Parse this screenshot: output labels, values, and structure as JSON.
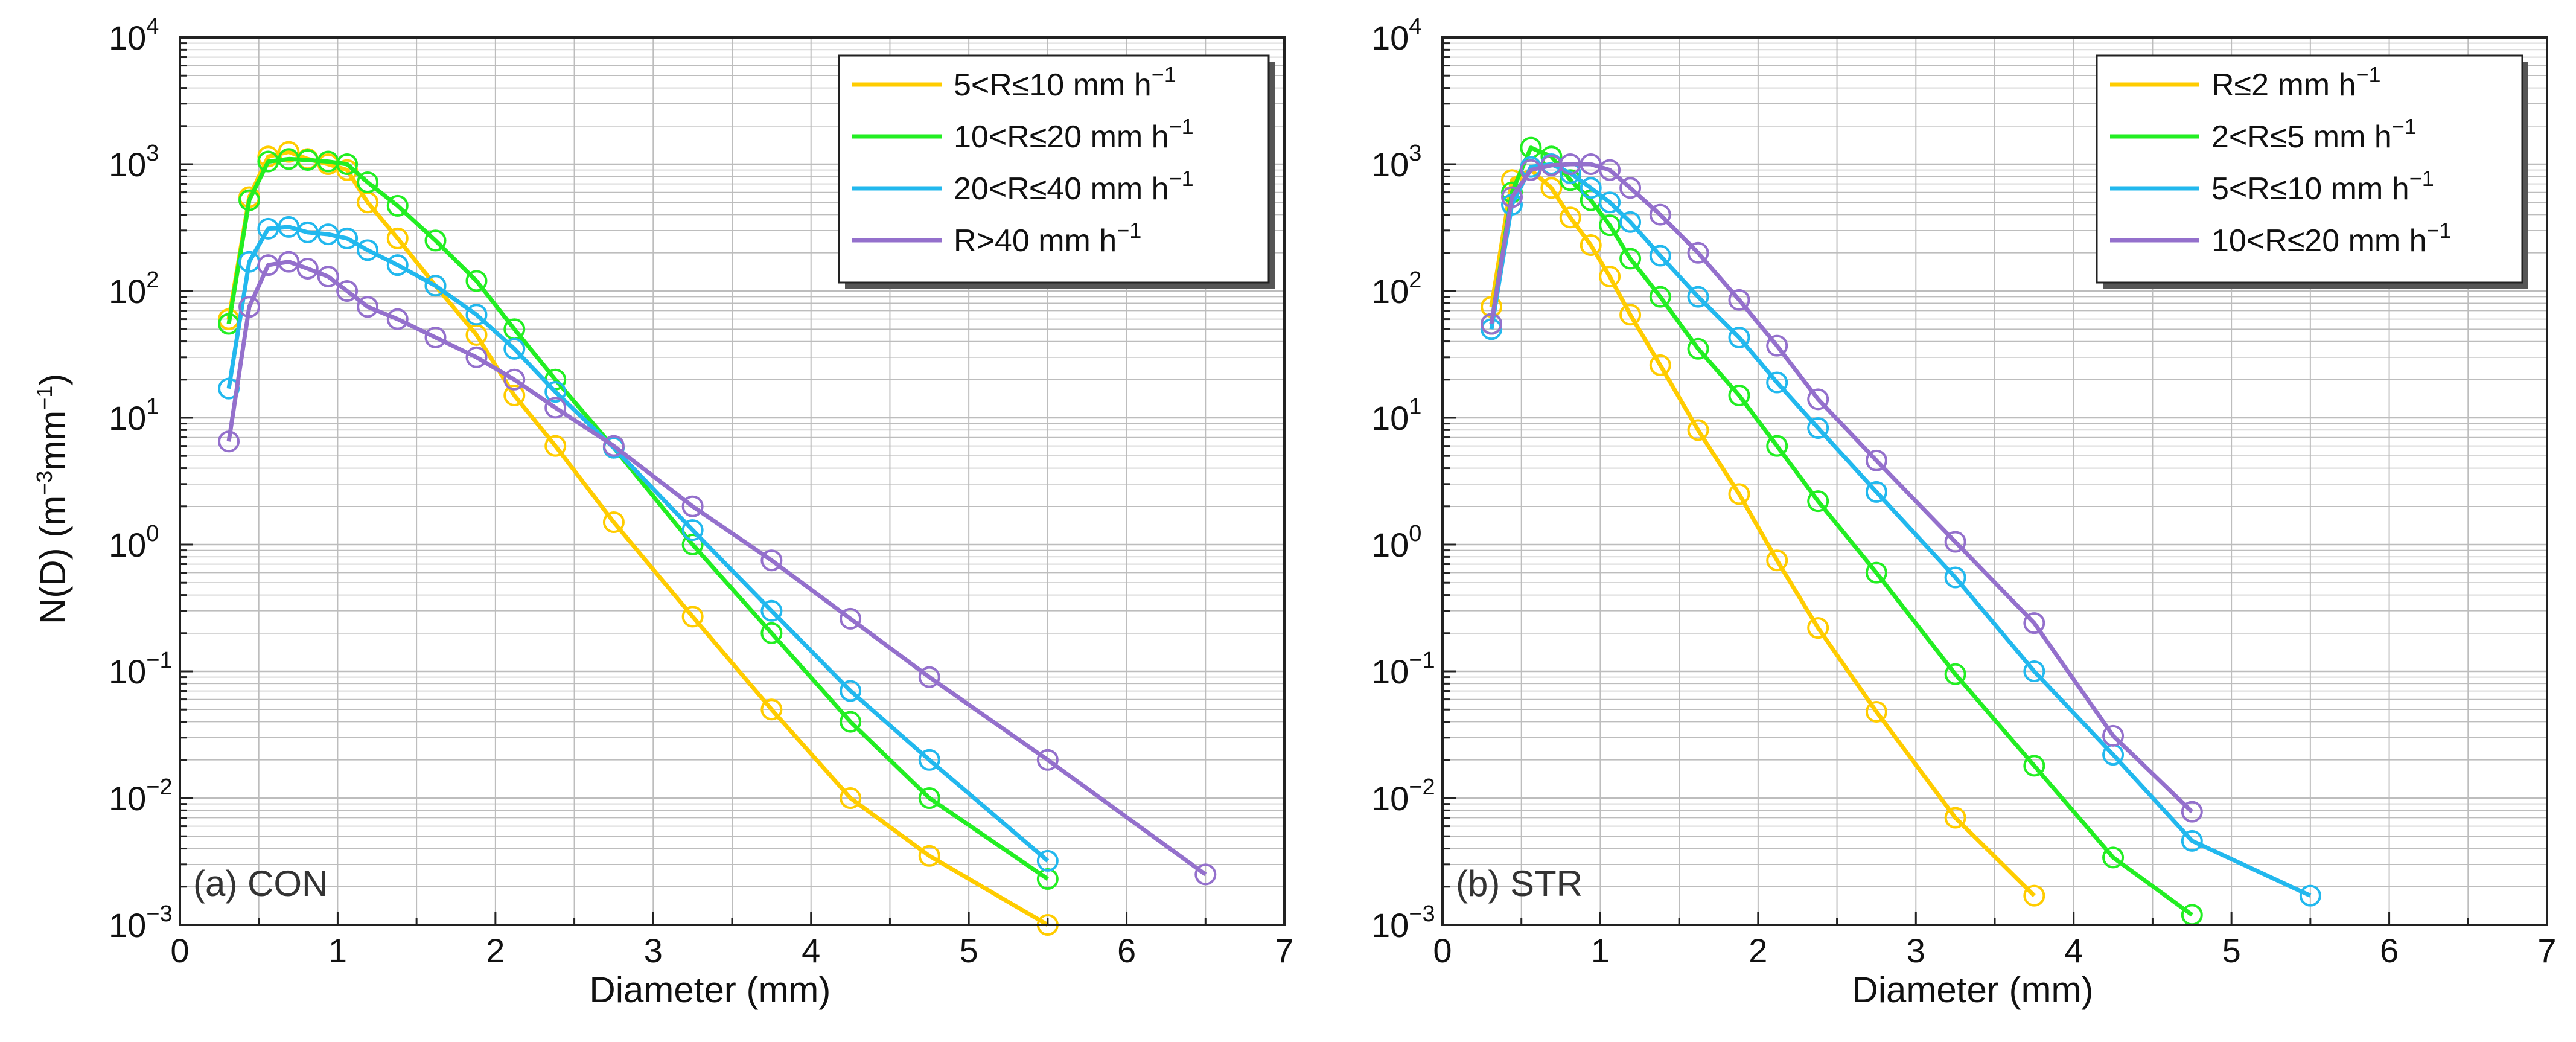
{
  "colors": {
    "yellow": "#FFCC00",
    "green": "#22EE22",
    "blue": "#22B8EE",
    "purple": "#9470CC",
    "grid": "#BDBDBD",
    "axis": "#222222"
  },
  "chart_data": [
    {
      "type": "line",
      "panel_label": "(a) CON",
      "xlabel": "Diameter (mm)",
      "ylabel": "N(D) (m",
      "ylabel_sup1": "−3",
      "ylabel_mid": "mm",
      "ylabel_sup2": "−1",
      "ylabel_end": ")",
      "yscale": "log",
      "xlim": [
        0,
        7
      ],
      "ylim": [
        0.001,
        10000
      ],
      "xticks": [
        "0",
        "1",
        "2",
        "3",
        "4",
        "5",
        "6",
        "7"
      ],
      "yticks": [
        {
          "base": "10",
          "exp": "-3"
        },
        {
          "base": "10",
          "exp": "-2"
        },
        {
          "base": "10",
          "exp": "-1"
        },
        {
          "base": "10",
          "exp": "0"
        },
        {
          "base": "10",
          "exp": "1"
        },
        {
          "base": "10",
          "exp": "2"
        },
        {
          "base": "10",
          "exp": "3"
        },
        {
          "base": "10",
          "exp": "4"
        }
      ],
      "legend_position": "top-right",
      "series": [
        {
          "name": "5<R≤10 mm h",
          "unit_sup": "−1",
          "color": "yellow",
          "x": [
            0.31,
            0.44,
            0.56,
            0.69,
            0.81,
            0.94,
            1.06,
            1.19,
            1.38,
            1.62,
            1.88,
            2.12,
            2.38,
            2.75,
            3.25,
            3.75,
            4.25,
            4.75,
            5.5
          ],
          "y": [
            60,
            550,
            1150,
            1250,
            1100,
            1000,
            900,
            500,
            260,
            110,
            45,
            15,
            6,
            1.5,
            0.27,
            0.05,
            0.01,
            0.0035,
            0.001
          ]
        },
        {
          "name": "10<R≤20 mm h",
          "unit_sup": "−1",
          "color": "green",
          "x": [
            0.31,
            0.44,
            0.56,
            0.69,
            0.81,
            0.94,
            1.06,
            1.19,
            1.38,
            1.62,
            1.88,
            2.12,
            2.38,
            2.75,
            3.25,
            3.75,
            4.25,
            4.75,
            5.5
          ],
          "y": [
            55,
            520,
            1050,
            1100,
            1080,
            1050,
            1000,
            720,
            470,
            250,
            120,
            50,
            20,
            5.8,
            1.0,
            0.2,
            0.04,
            0.01,
            0.0023
          ]
        },
        {
          "name": "20<R≤40 mm h",
          "unit_sup": "−1",
          "color": "blue",
          "x": [
            0.31,
            0.44,
            0.56,
            0.69,
            0.81,
            0.94,
            1.06,
            1.19,
            1.38,
            1.62,
            1.88,
            2.12,
            2.38,
            2.75,
            3.25,
            3.75,
            4.25,
            4.75,
            5.5
          ],
          "y": [
            17,
            170,
            310,
            320,
            290,
            280,
            260,
            210,
            160,
            110,
            65,
            35,
            16,
            5.8,
            1.3,
            0.3,
            0.07,
            0.02,
            0.0032
          ]
        },
        {
          "name": "R>40 mm h",
          "unit_sup": "−1",
          "color": "purple",
          "x": [
            0.31,
            0.44,
            0.56,
            0.69,
            0.81,
            0.94,
            1.06,
            1.19,
            1.38,
            1.62,
            1.88,
            2.12,
            2.38,
            2.75,
            3.25,
            3.75,
            4.25,
            4.75,
            5.5,
            6.5
          ],
          "y": [
            6.5,
            75,
            160,
            170,
            150,
            130,
            100,
            75,
            60,
            43,
            30,
            20,
            12,
            6,
            2.0,
            0.75,
            0.26,
            0.09,
            0.02,
            0.0025
          ]
        }
      ]
    },
    {
      "type": "line",
      "panel_label": "(b) STR",
      "xlabel": "Diameter (mm)",
      "yscale": "log",
      "xlim": [
        0,
        7
      ],
      "ylim": [
        0.001,
        10000
      ],
      "xticks": [
        "0",
        "1",
        "2",
        "3",
        "4",
        "5",
        "6",
        "7"
      ],
      "yticks": [
        {
          "base": "10",
          "exp": "-3"
        },
        {
          "base": "10",
          "exp": "-2"
        },
        {
          "base": "10",
          "exp": "-1"
        },
        {
          "base": "10",
          "exp": "0"
        },
        {
          "base": "10",
          "exp": "1"
        },
        {
          "base": "10",
          "exp": "2"
        },
        {
          "base": "10",
          "exp": "3"
        },
        {
          "base": "10",
          "exp": "4"
        }
      ],
      "legend_position": "top-right",
      "series": [
        {
          "name": "R≤2 mm h",
          "unit_sup": "−1",
          "color": "yellow",
          "x": [
            0.31,
            0.44,
            0.56,
            0.69,
            0.81,
            0.94,
            1.06,
            1.19,
            1.38,
            1.62,
            1.88,
            2.12,
            2.38,
            2.75,
            3.25,
            3.75
          ],
          "y": [
            75,
            750,
            900,
            650,
            380,
            230,
            130,
            65,
            26,
            8,
            2.5,
            0.75,
            0.22,
            0.048,
            0.007,
            0.0017
          ]
        },
        {
          "name": "2<R≤5 mm h",
          "unit_sup": "−1",
          "color": "green",
          "x": [
            0.31,
            0.44,
            0.56,
            0.69,
            0.81,
            0.94,
            1.06,
            1.19,
            1.38,
            1.62,
            1.88,
            2.12,
            2.38,
            2.75,
            3.25,
            3.75,
            4.25,
            4.75
          ],
          "y": [
            55,
            600,
            1350,
            1150,
            750,
            520,
            330,
            180,
            90,
            35,
            15,
            6,
            2.2,
            0.6,
            0.095,
            0.018,
            0.0034,
            0.0012
          ]
        },
        {
          "name": "5<R≤10 mm h",
          "unit_sup": "−1",
          "color": "blue",
          "x": [
            0.31,
            0.44,
            0.56,
            0.69,
            0.81,
            0.94,
            1.06,
            1.19,
            1.38,
            1.62,
            1.88,
            2.12,
            2.38,
            2.75,
            3.25,
            3.75,
            4.25,
            4.75,
            5.5
          ],
          "y": [
            50,
            480,
            950,
            1000,
            850,
            650,
            500,
            350,
            190,
            90,
            43,
            19,
            8.3,
            2.6,
            0.55,
            0.1,
            0.022,
            0.0046,
            0.0017
          ]
        },
        {
          "name": "10<R≤20 mm h",
          "unit_sup": "−1",
          "color": "purple",
          "x": [
            0.31,
            0.44,
            0.56,
            0.69,
            0.81,
            0.94,
            1.06,
            1.19,
            1.38,
            1.62,
            1.88,
            2.12,
            2.38,
            2.75,
            3.25,
            3.75,
            4.25,
            4.75
          ],
          "y": [
            55,
            550,
            900,
            980,
            1000,
            1000,
            900,
            650,
            400,
            200,
            85,
            37,
            14,
            4.6,
            1.05,
            0.24,
            0.031,
            0.0078
          ]
        }
      ]
    }
  ]
}
